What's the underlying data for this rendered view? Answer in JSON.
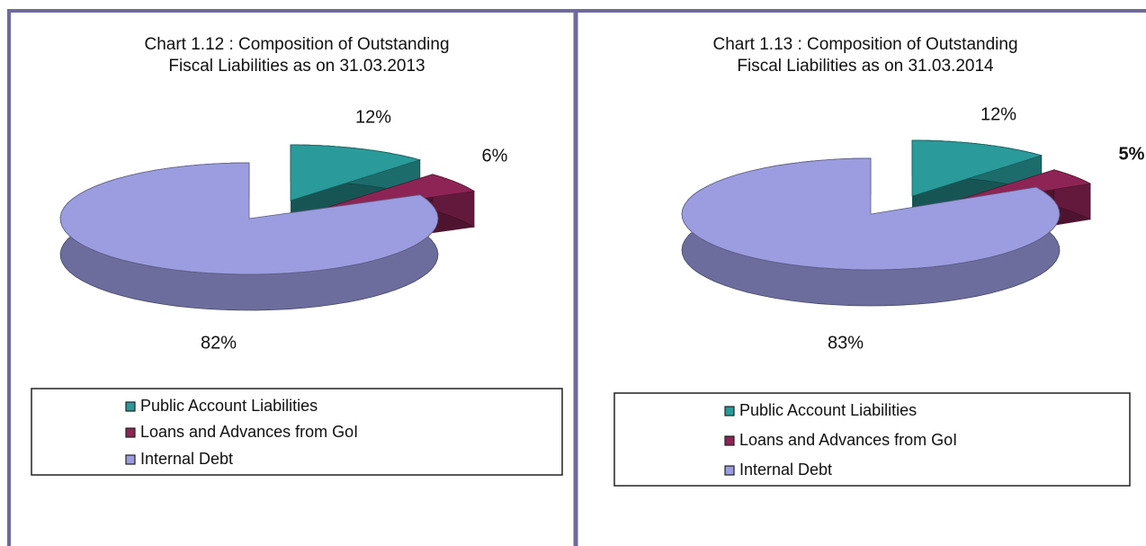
{
  "chart_data": [
    {
      "type": "pie",
      "title": [
        "Chart 1.12 : Composition of Outstanding",
        "Fiscal Liabilities as on 31.03.2013"
      ],
      "categories": [
        "Public Account Liabilities",
        "Loans and Advances from GoI",
        "Internal Debt"
      ],
      "values": [
        12,
        6,
        82
      ],
      "value_labels": [
        "12%",
        "6%",
        "82%"
      ],
      "colors": [
        "#2a9a9a",
        "#8e2455",
        "#9c9ce0"
      ],
      "legend": "bottom"
    },
    {
      "type": "pie",
      "title": [
        "Chart 1.13 : Composition of Outstanding",
        "Fiscal Liabilities as on 31.03.2014"
      ],
      "categories": [
        "Public Account Liabilities",
        "Loans and Advances from GoI",
        "Internal Debt"
      ],
      "values": [
        12,
        5,
        83
      ],
      "value_labels": [
        "12%",
        "5%",
        "83%"
      ],
      "colors": [
        "#2a9a9a",
        "#8e2455",
        "#9c9ce0"
      ],
      "legend": "bottom"
    }
  ]
}
